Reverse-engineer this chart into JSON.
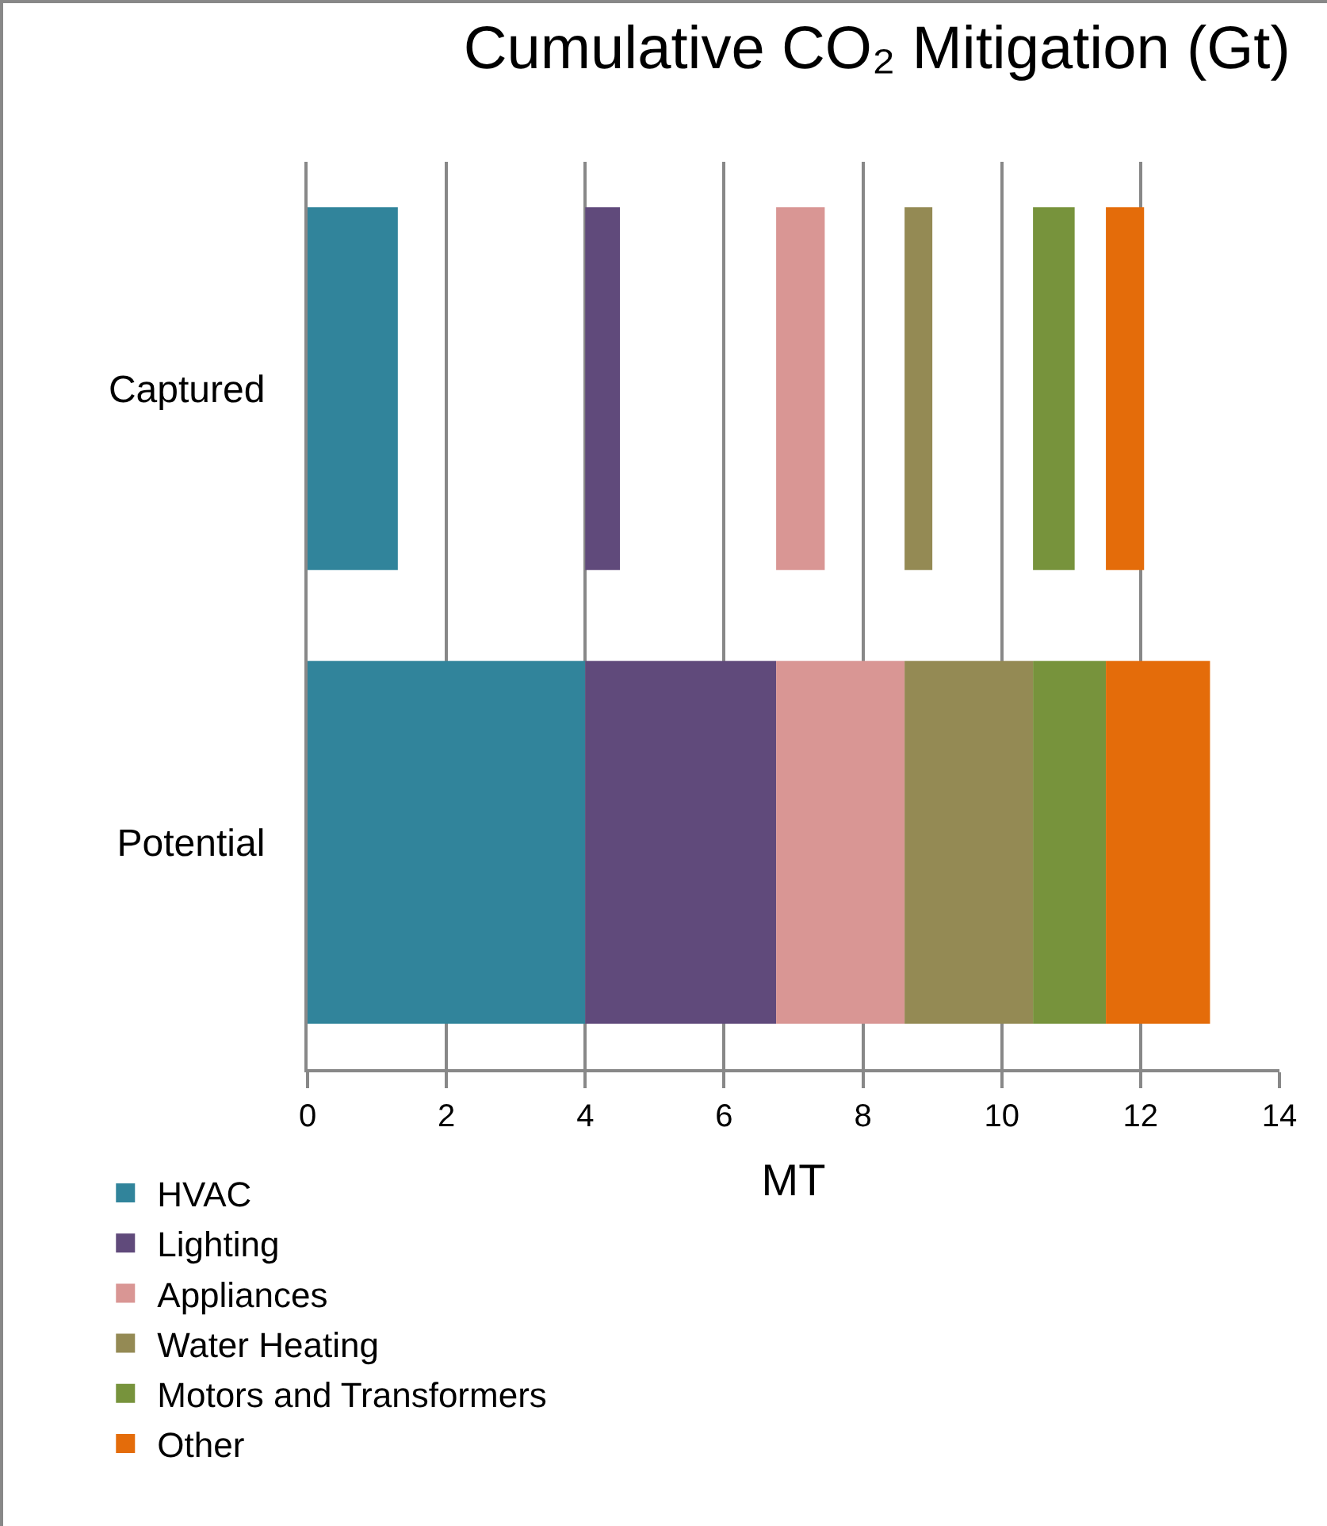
{
  "chart_data": {
    "type": "bar",
    "orientation": "horizontal",
    "title": "Cumulative CO₂ Mitigation (Gt)",
    "xlabel": "MT",
    "categories": [
      "Captured",
      "Potential"
    ],
    "series": [
      {
        "name": "HVAC",
        "color": "#31849b",
        "values": [
          1.3,
          4
        ],
        "base": [
          0,
          0
        ]
      },
      {
        "name": "Lighting",
        "color": "#604a7b",
        "values": [
          0.5,
          2.75
        ],
        "base": [
          4,
          4
        ]
      },
      {
        "name": "Appliances",
        "color": "#d99694",
        "values": [
          0.7,
          1.85
        ],
        "base": [
          6.75,
          6.75
        ]
      },
      {
        "name": "Water Heating",
        "color": "#948a54",
        "values": [
          0.4,
          1.85
        ],
        "base": [
          8.6,
          8.6
        ]
      },
      {
        "name": "Motors and Transformers",
        "color": "#77933c",
        "values": [
          0.6,
          1.05
        ],
        "base": [
          10.45,
          10.45
        ]
      },
      {
        "name": "Other",
        "color": "#e46c0a",
        "values": [
          0.55,
          1.5
        ],
        "base": [
          11.5,
          11.5
        ]
      }
    ],
    "xlim": [
      0,
      14
    ],
    "xticks": [
      0,
      2,
      4,
      6,
      8,
      10,
      12,
      14
    ],
    "grid": "x",
    "legend": "bottom left"
  }
}
